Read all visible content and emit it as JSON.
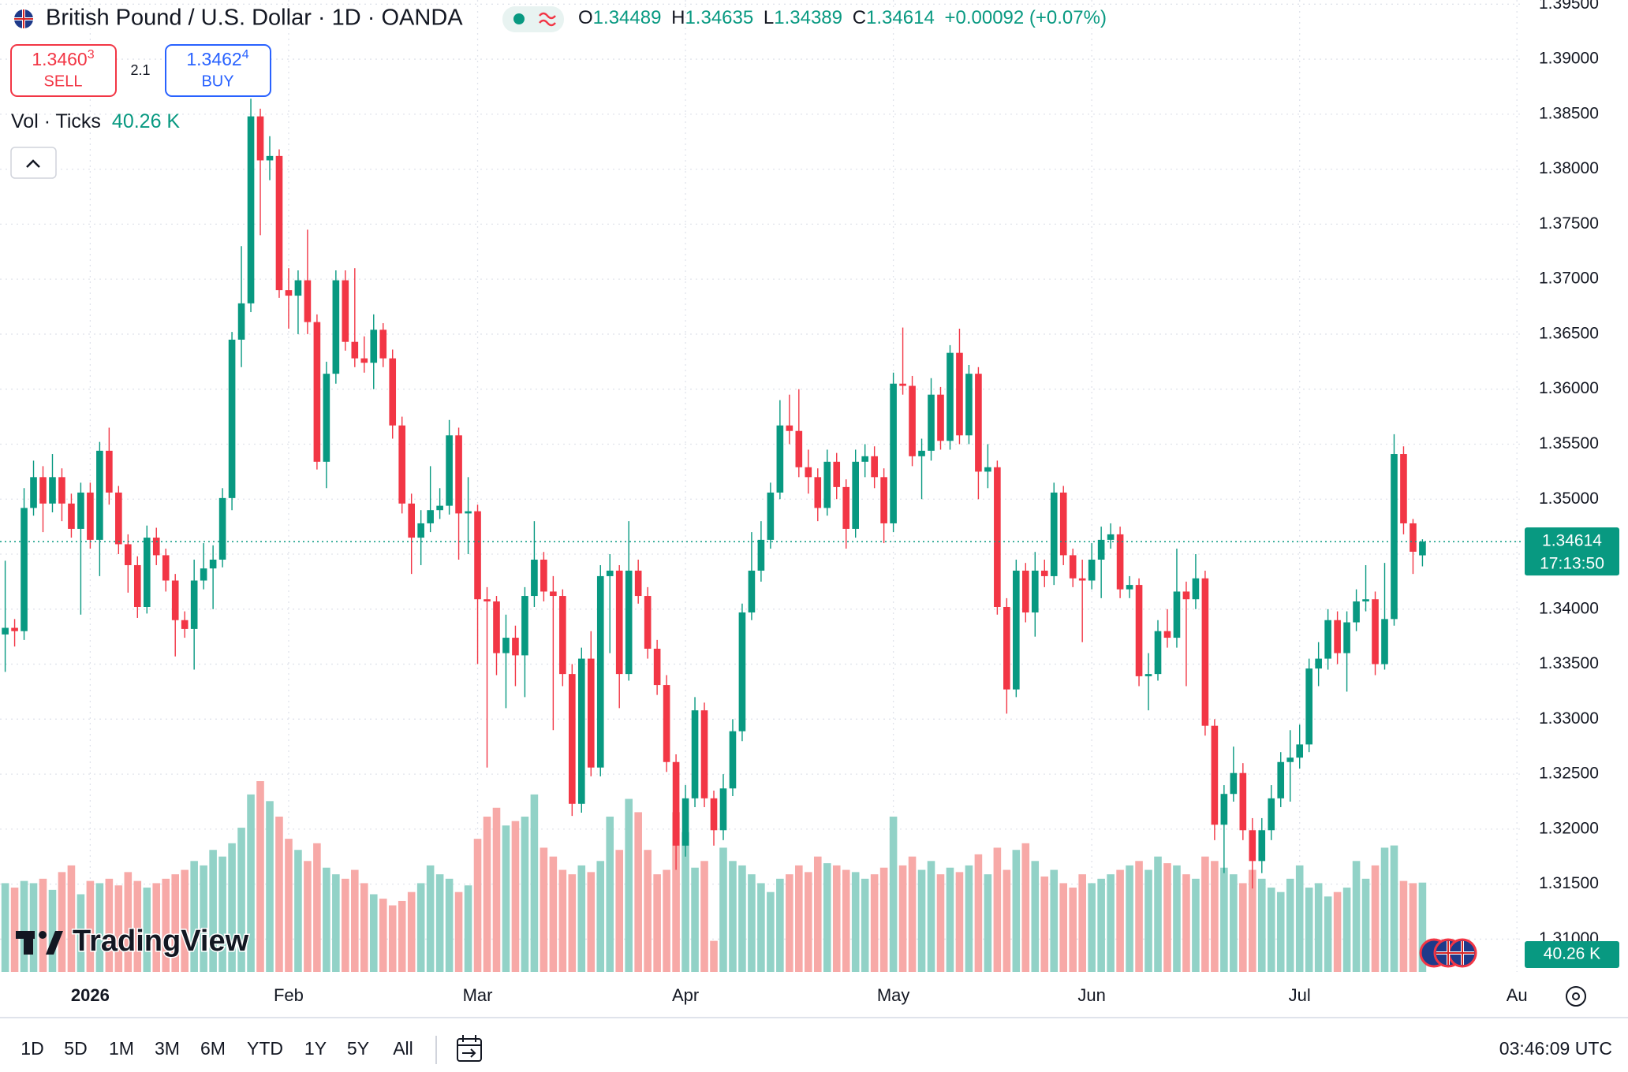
{
  "ui": {
    "title": "British Pound / U.S. Dollar · 1D · OANDA",
    "ohlc_letters": [
      "O",
      "H",
      "L",
      "C"
    ],
    "change": "+0.00092 (+0.07%)",
    "sell": {
      "price": "1.3460",
      "pip": "3",
      "label": "SELL"
    },
    "spread": "2.1",
    "buy": {
      "price": "1.3462",
      "pip": "4",
      "label": "BUY"
    },
    "volume_title": "Vol · Ticks",
    "volume_value": "40.26 K",
    "countdown": "17:13:50",
    "logo": "TradingView",
    "ranges": [
      "1D",
      "5D",
      "1M",
      "3M",
      "6M",
      "YTD",
      "1Y",
      "5Y",
      "All"
    ],
    "clock": "03:46:09 UTC"
  },
  "chart_data": {
    "type": "candlestick",
    "up_color": "#089981",
    "down_color": "#f23645",
    "volume_up_color": "#92d2c7",
    "volume_down_color": "#f7a9a7",
    "grid": true,
    "xlim": [
      -0.55,
      160.4
    ],
    "xticks": [
      {
        "value": 9,
        "label": "2026"
      },
      {
        "value": 30,
        "label": "Feb"
      },
      {
        "value": 50,
        "label": "Mar"
      },
      {
        "value": 72,
        "label": "Apr"
      },
      {
        "value": 94,
        "label": "May"
      },
      {
        "value": 115,
        "label": "Jun"
      },
      {
        "value": 137,
        "label": "Jul"
      },
      {
        "value": 160,
        "label": "Au"
      }
    ],
    "ylim": [
      1.30702,
      1.39538
    ],
    "yticks": [
      {
        "value": 1.395,
        "label": "1.39500"
      },
      {
        "value": 1.39,
        "label": "1.39000"
      },
      {
        "value": 1.385,
        "label": "1.38500"
      },
      {
        "value": 1.38,
        "label": "1.38000"
      },
      {
        "value": 1.375,
        "label": "1.37500"
      },
      {
        "value": 1.37,
        "label": "1.37000"
      },
      {
        "value": 1.365,
        "label": "1.36500"
      },
      {
        "value": 1.36,
        "label": "1.36000"
      },
      {
        "value": 1.355,
        "label": "1.35500"
      },
      {
        "value": 1.35,
        "label": "1.35000"
      },
      {
        "value": 1.345,
        "label": "1.34500"
      },
      {
        "value": 1.34,
        "label": "1.34000"
      },
      {
        "value": 1.335,
        "label": "1.33500"
      },
      {
        "value": 1.33,
        "label": "1.33000"
      },
      {
        "value": 1.325,
        "label": "1.32500"
      },
      {
        "value": 1.32,
        "label": "1.32000"
      },
      {
        "value": 1.315,
        "label": "1.31500"
      },
      {
        "value": 1.31,
        "label": "1.31000"
      }
    ],
    "open": [
      1.3377,
      1.3383,
      1.338,
      1.3492,
      1.352,
      1.3496,
      1.352,
      1.3496,
      1.3473,
      1.3506,
      1.3463,
      1.3544,
      1.3506,
      1.3459,
      1.344,
      1.3402,
      1.3465,
      1.3449,
      1.3426,
      1.339,
      1.3382,
      1.3426,
      1.3437,
      1.3445,
      1.3501,
      1.3645,
      1.3678,
      1.3848,
      1.3808,
      1.3812,
      1.369,
      1.3685,
      1.3699,
      1.3661,
      1.3534,
      1.3614,
      1.3699,
      1.3643,
      1.3628,
      1.3624,
      1.3654,
      1.3628,
      1.3567,
      1.3496,
      1.3465,
      1.3478,
      1.349,
      1.3494,
      1.3558,
      1.3487,
      1.3489,
      1.3409,
      1.3407,
      1.336,
      1.3374,
      1.3358,
      1.3412,
      1.3445,
      1.3416,
      1.3412,
      1.3341,
      1.3223,
      1.3355,
      1.3256,
      1.343,
      1.3435,
      1.3341,
      1.3435,
      1.3412,
      1.3364,
      1.3331,
      1.3261,
      1.3185,
      1.3228,
      1.3308,
      1.3228,
      1.3199,
      1.3237,
      1.3289,
      1.3397,
      1.3435,
      1.3463,
      1.3506,
      1.3567,
      1.3562,
      1.3529,
      1.352,
      1.3492,
      1.3534,
      1.3511,
      1.3473,
      1.3534,
      1.3539,
      1.352,
      1.3478,
      1.3605,
      1.3603,
      1.3539,
      1.3544,
      1.3595,
      1.3553,
      1.3633,
      1.3558,
      1.3614,
      1.3525,
      1.3529,
      1.3402,
      1.3327,
      1.3435,
      1.3397,
      1.3435,
      1.343,
      1.3506,
      1.3449,
      1.3428,
      1.3426,
      1.3445,
      1.3463,
      1.3468,
      1.3418,
      1.3422,
      1.3339,
      1.3341,
      1.338,
      1.3374,
      1.3416,
      1.3409,
      1.3428,
      1.3294,
      1.3204,
      1.3232,
      1.3251,
      1.3199,
      1.3171,
      1.3199,
      1.3228,
      1.3261,
      1.3265,
      1.3277,
      1.3346,
      1.3355,
      1.339,
      1.336,
      1.3388,
      1.3407,
      1.3409,
      1.335,
      1.3391,
      1.3541,
      1.3478,
      1.34489
    ],
    "high": [
      1.3444,
      1.3391,
      1.351,
      1.3535,
      1.353,
      1.3541,
      1.3528,
      1.3505,
      1.3515,
      1.3515,
      1.3552,
      1.3565,
      1.3512,
      1.3468,
      1.3448,
      1.3476,
      1.3474,
      1.3455,
      1.3432,
      1.3398,
      1.3445,
      1.346,
      1.3458,
      1.351,
      1.3652,
      1.373,
      1.3864,
      1.3855,
      1.383,
      1.3818,
      1.371,
      1.3708,
      1.3745,
      1.3668,
      1.3625,
      1.3708,
      1.3708,
      1.371,
      1.3648,
      1.3668,
      1.366,
      1.3636,
      1.3575,
      1.3505,
      1.349,
      1.353,
      1.351,
      1.3572,
      1.3565,
      1.352,
      1.3495,
      1.342,
      1.3412,
      1.3395,
      1.3385,
      1.342,
      1.348,
      1.3452,
      1.343,
      1.3418,
      1.335,
      1.3365,
      1.338,
      1.344,
      1.345,
      1.344,
      1.348,
      1.3445,
      1.342,
      1.3372,
      1.334,
      1.3268,
      1.324,
      1.332,
      1.3315,
      1.3235,
      1.325,
      1.33,
      1.3405,
      1.347,
      1.348,
      1.3515,
      1.359,
      1.3595,
      1.36,
      1.3545,
      1.3528,
      1.3545,
      1.3542,
      1.3518,
      1.3545,
      1.355,
      1.3548,
      1.3528,
      1.3615,
      1.3656,
      1.3612,
      1.3555,
      1.361,
      1.3602,
      1.364,
      1.3655,
      1.3622,
      1.362,
      1.355,
      1.3535,
      1.341,
      1.3445,
      1.3442,
      1.3452,
      1.3445,
      1.3515,
      1.3512,
      1.3455,
      1.3445,
      1.346,
      1.3475,
      1.3478,
      1.3475,
      1.343,
      1.3428,
      1.336,
      1.339,
      1.34,
      1.3455,
      1.3425,
      1.345,
      1.3435,
      1.33,
      1.324,
      1.3275,
      1.326,
      1.321,
      1.321,
      1.324,
      1.327,
      1.329,
      1.3295,
      1.3355,
      1.337,
      1.34,
      1.3398,
      1.3398,
      1.3418,
      1.344,
      1.3416,
      1.3442,
      1.3559,
      1.3548,
      1.3482,
      1.34635
    ],
    "low": [
      1.3343,
      1.3366,
      1.3372,
      1.3485,
      1.347,
      1.3488,
      1.348,
      1.3465,
      1.3395,
      1.3455,
      1.343,
      1.3495,
      1.345,
      1.3415,
      1.3392,
      1.3396,
      1.344,
      1.3416,
      1.3357,
      1.3374,
      1.3345,
      1.3418,
      1.34,
      1.3438,
      1.349,
      1.362,
      1.367,
      1.374,
      1.379,
      1.3683,
      1.3655,
      1.365,
      1.365,
      1.3527,
      1.351,
      1.3605,
      1.3635,
      1.362,
      1.3615,
      1.36,
      1.362,
      1.3555,
      1.3487,
      1.3432,
      1.344,
      1.347,
      1.3482,
      1.3486,
      1.3445,
      1.345,
      1.335,
      1.3256,
      1.334,
      1.331,
      1.333,
      1.332,
      1.3402,
      1.3407,
      1.329,
      1.333,
      1.3212,
      1.3215,
      1.3248,
      1.3248,
      1.336,
      1.331,
      1.3335,
      1.3405,
      1.3355,
      1.3322,
      1.3252,
      1.3163,
      1.3175,
      1.322,
      1.322,
      1.3185,
      1.319,
      1.323,
      1.328,
      1.339,
      1.3425,
      1.3455,
      1.35,
      1.355,
      1.352,
      1.3505,
      1.348,
      1.3485,
      1.35,
      1.3455,
      1.3465,
      1.352,
      1.351,
      1.346,
      1.347,
      1.3595,
      1.353,
      1.35,
      1.3535,
      1.3545,
      1.3545,
      1.355,
      1.355,
      1.35,
      1.351,
      1.3395,
      1.3305,
      1.332,
      1.3388,
      1.3375,
      1.342,
      1.3422,
      1.344,
      1.342,
      1.337,
      1.3418,
      1.341,
      1.3455,
      1.341,
      1.341,
      1.333,
      1.3308,
      1.3335,
      1.3365,
      1.3365,
      1.333,
      1.34,
      1.3285,
      1.319,
      1.316,
      1.3225,
      1.319,
      1.3146,
      1.316,
      1.319,
      1.322,
      1.3225,
      1.3255,
      1.327,
      1.333,
      1.3345,
      1.335,
      1.3325,
      1.338,
      1.3398,
      1.334,
      1.3345,
      1.3385,
      1.3468,
      1.3432,
      1.34389
    ],
    "close": [
      1.3383,
      1.338,
      1.3492,
      1.352,
      1.3496,
      1.352,
      1.3496,
      1.3473,
      1.3506,
      1.3463,
      1.3544,
      1.3506,
      1.3459,
      1.344,
      1.3402,
      1.3465,
      1.3449,
      1.3426,
      1.339,
      1.3382,
      1.3426,
      1.3437,
      1.3445,
      1.3501,
      1.3645,
      1.3678,
      1.3848,
      1.3808,
      1.3812,
      1.369,
      1.3685,
      1.3699,
      1.3661,
      1.3534,
      1.3614,
      1.3699,
      1.3643,
      1.3628,
      1.3624,
      1.3654,
      1.3628,
      1.3567,
      1.3496,
      1.3465,
      1.3478,
      1.349,
      1.3494,
      1.3558,
      1.3487,
      1.3489,
      1.3409,
      1.3407,
      1.336,
      1.3374,
      1.3358,
      1.3412,
      1.3445,
      1.3416,
      1.3412,
      1.3341,
      1.3223,
      1.3355,
      1.3256,
      1.343,
      1.3435,
      1.3341,
      1.3435,
      1.3412,
      1.3364,
      1.3331,
      1.3261,
      1.3185,
      1.3228,
      1.3308,
      1.3228,
      1.3199,
      1.3237,
      1.3289,
      1.3397,
      1.3435,
      1.3463,
      1.3506,
      1.3567,
      1.3562,
      1.3529,
      1.352,
      1.3492,
      1.3534,
      1.3511,
      1.3473,
      1.3534,
      1.3539,
      1.352,
      1.3478,
      1.3605,
      1.3603,
      1.3539,
      1.3544,
      1.3595,
      1.3553,
      1.3633,
      1.3558,
      1.3614,
      1.3525,
      1.3529,
      1.3402,
      1.3327,
      1.3435,
      1.3397,
      1.3435,
      1.343,
      1.3506,
      1.3449,
      1.3428,
      1.3426,
      1.3445,
      1.3463,
      1.3468,
      1.3418,
      1.3422,
      1.3339,
      1.3341,
      1.338,
      1.3374,
      1.3416,
      1.3409,
      1.3428,
      1.3294,
      1.3204,
      1.3232,
      1.3251,
      1.3199,
      1.3171,
      1.3199,
      1.3228,
      1.3261,
      1.3265,
      1.3277,
      1.3346,
      1.3355,
      1.339,
      1.336,
      1.3388,
      1.3407,
      1.3409,
      1.335,
      1.3391,
      1.3541,
      1.3478,
      1.34522,
      1.34614
    ],
    "volume": [
      40,
      38,
      41,
      40,
      42,
      37,
      45,
      48,
      35,
      41,
      40,
      42,
      39,
      45,
      41,
      38,
      40,
      42,
      44,
      46,
      50,
      48,
      55,
      52,
      58,
      65,
      80,
      86,
      77,
      70,
      60,
      55,
      50,
      58,
      47,
      44,
      42,
      46,
      40,
      35,
      33,
      30,
      32,
      36,
      40,
      48,
      44,
      42,
      36,
      39,
      60,
      70,
      74,
      66,
      68,
      70,
      80,
      56,
      52,
      46,
      44,
      48,
      45,
      50,
      70,
      55,
      78,
      72,
      55,
      44,
      46,
      72,
      63,
      47,
      50,
      14,
      56,
      50,
      48,
      44,
      40,
      36,
      42,
      44,
      48,
      45,
      52,
      49,
      48,
      46,
      45,
      42,
      44,
      47,
      70,
      48,
      52,
      46,
      50,
      44,
      47,
      45,
      48,
      53,
      44,
      56,
      46,
      55,
      58,
      50,
      43,
      46,
      40,
      38,
      44,
      40,
      42,
      44,
      46,
      48,
      50,
      46,
      52,
      49,
      48,
      44,
      42,
      52,
      50,
      47,
      44,
      40,
      46,
      42,
      38,
      36,
      42,
      48,
      38,
      40,
      34,
      36,
      38,
      50,
      42,
      48,
      56,
      57,
      41,
      40,
      40.26
    ]
  }
}
